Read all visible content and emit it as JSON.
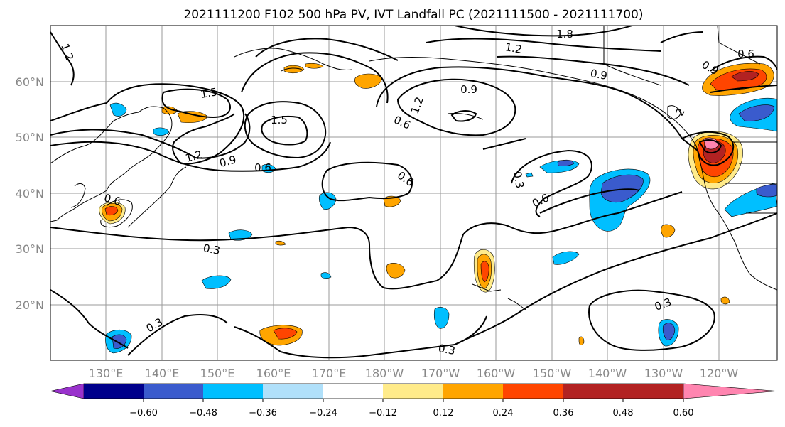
{
  "title": "2021111200 F102 500 hPa PV, IVT Landfall PC (2021111500 - 2021111700)",
  "map": {
    "lat_labels": [
      "60°N",
      "50°N",
      "40°N",
      "30°N",
      "20°N"
    ],
    "lon_labels": [
      "130°E",
      "140°E",
      "150°E",
      "160°E",
      "170°E",
      "180°W",
      "170°W",
      "160°W",
      "150°W",
      "140°W",
      "130°W",
      "120°W"
    ]
  },
  "contour_labels": [
    {
      "text": "1.2",
      "angle": 70
    },
    {
      "text": "1.5",
      "angle": -10
    },
    {
      "text": "1.5",
      "angle": 0
    },
    {
      "text": "1.2",
      "angle": -15
    },
    {
      "text": "0.9",
      "angle": -15
    },
    {
      "text": "0.6",
      "angle": 0
    },
    {
      "text": "0.6",
      "angle": 15
    },
    {
      "text": "0.3",
      "angle": 10
    },
    {
      "text": "0.3",
      "angle": -30
    },
    {
      "text": "0.3",
      "angle": 10
    },
    {
      "text": "0.6",
      "angle": 0
    },
    {
      "text": "0.6",
      "angle": 35
    },
    {
      "text": "0.3",
      "angle": 80
    },
    {
      "text": "0.6",
      "angle": -25
    },
    {
      "text": "1.2",
      "angle": -70
    },
    {
      "text": "0.9",
      "angle": 0
    },
    {
      "text": "0.9",
      "angle": 10
    },
    {
      "text": "1.2",
      "angle": 10
    },
    {
      "text": "1.8",
      "angle": 0
    },
    {
      "text": "0.9",
      "angle": 30
    },
    {
      "text": "2",
      "angle": -60
    },
    {
      "text": "0.6",
      "angle": 0
    },
    {
      "text": "0.3",
      "angle": -20
    }
  ],
  "colorbar": {
    "colors": [
      "#9932cc",
      "#00008b",
      "#3a5bcd",
      "#00bfff",
      "#b0e0fa",
      "#ffffff",
      "#ffeb8a",
      "#ffa500",
      "#ff4500",
      "#b22222",
      "#ff85b0"
    ],
    "ticks": [
      "−0.60",
      "−0.48",
      "−0.36",
      "−0.24",
      "−0.12",
      "0.12",
      "0.24",
      "0.36",
      "0.48",
      "0.60"
    ]
  }
}
